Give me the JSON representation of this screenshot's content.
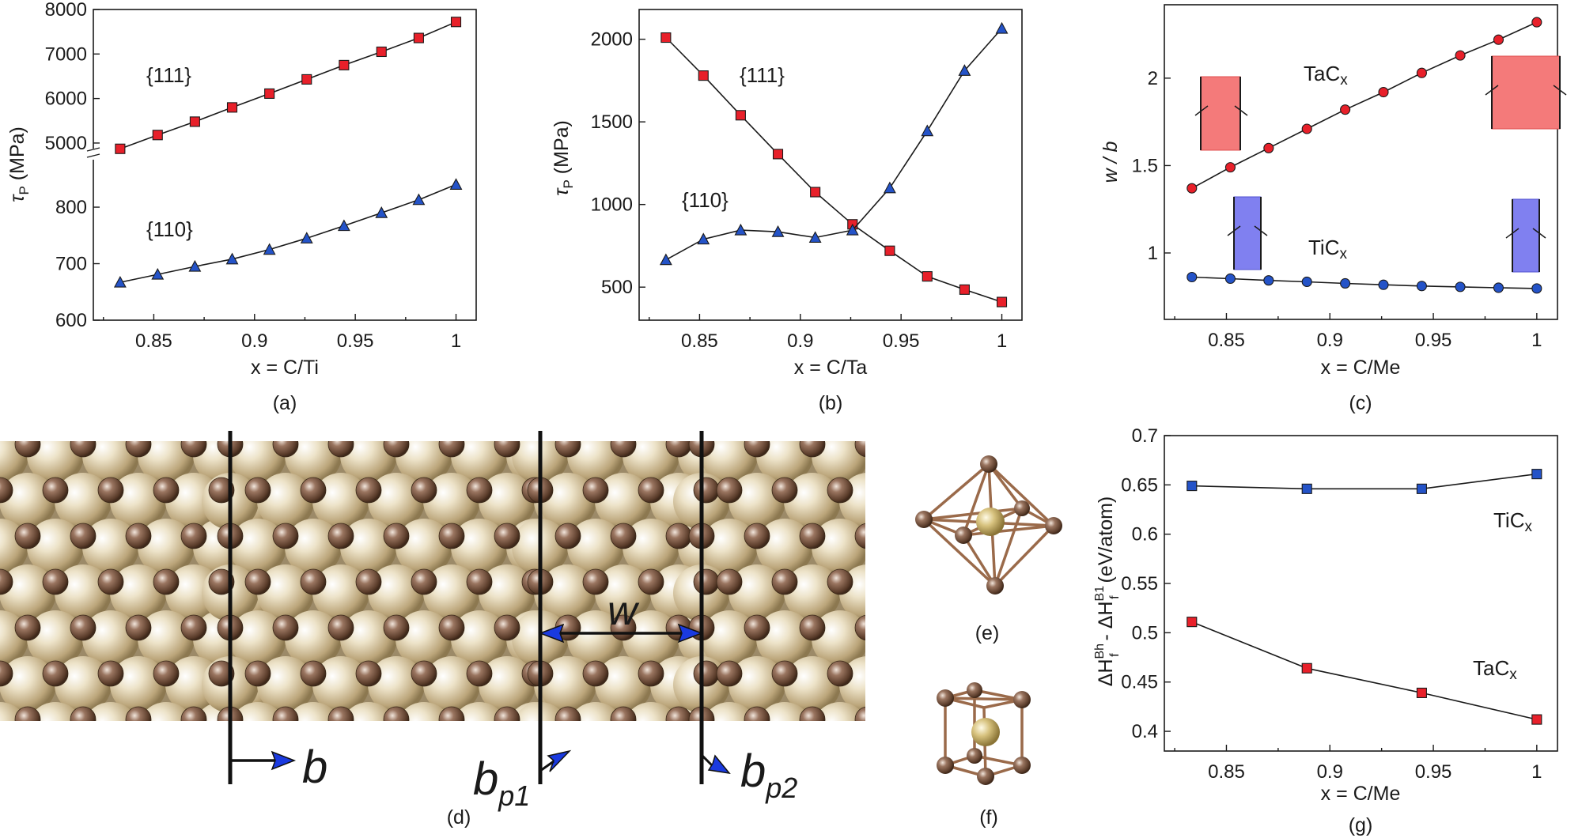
{
  "chart_data": [
    {
      "type": "line",
      "panel_label": "(a)",
      "xlabel": "x = C/Ti",
      "ylabel": "τP (MPa)",
      "x_ticks": [
        0.85,
        0.9,
        0.95,
        1
      ],
      "x_tick_labels": [
        "0.85",
        "0.9",
        "0.95",
        "1"
      ],
      "xlim": [
        0.82,
        1.01
      ],
      "broken_axis": true,
      "upper_ylim": [
        4750,
        8000
      ],
      "upper_y_tick_labels": [
        "5000",
        "6000",
        "7000",
        "8000"
      ],
      "upper_y_ticks": [
        5000,
        6000,
        7000,
        8000
      ],
      "lower_ylim": [
        600,
        870
      ],
      "lower_y_tick_labels": [
        "600",
        "700",
        "800"
      ],
      "lower_y_ticks": [
        600,
        700,
        800
      ],
      "x": [
        0.8333,
        0.8519,
        0.8704,
        0.8889,
        0.9074,
        0.9259,
        0.9444,
        0.963,
        0.9815,
        1.0
      ],
      "series": [
        {
          "name": "{111}",
          "marker": "square",
          "color": "#e8202a",
          "segment": "upper",
          "values": [
            4870,
            5180,
            5480,
            5800,
            6110,
            6430,
            6750,
            7050,
            7360,
            7720
          ]
        },
        {
          "name": "{110}",
          "marker": "triangle",
          "color": "#2453c8",
          "segment": "lower",
          "values": [
            667,
            681,
            695,
            708,
            725,
            745,
            767,
            790,
            813,
            840
          ]
        }
      ]
    },
    {
      "type": "line",
      "panel_label": "(b)",
      "xlabel": "x = C/Ta",
      "ylabel": "τP (MPa)",
      "x_ticks": [
        0.85,
        0.9,
        0.95,
        1
      ],
      "x_tick_labels": [
        "0.85",
        "0.9",
        "0.95",
        "1"
      ],
      "xlim": [
        0.82,
        1.01
      ],
      "ylim": [
        300,
        2180
      ],
      "y_ticks": [
        500,
        1000,
        1500,
        2000
      ],
      "y_tick_labels": [
        "500",
        "1000",
        "1500",
        "2000"
      ],
      "x": [
        0.8333,
        0.8519,
        0.8704,
        0.8889,
        0.9074,
        0.9259,
        0.9444,
        0.963,
        0.9815,
        1.0
      ],
      "series": [
        {
          "name": "{111}",
          "marker": "square",
          "color": "#e8202a",
          "values": [
            2010,
            1780,
            1540,
            1305,
            1075,
            880,
            720,
            565,
            485,
            410
          ]
        },
        {
          "name": "{110}",
          "marker": "triangle",
          "color": "#2453c8",
          "values": [
            665,
            790,
            845,
            835,
            800,
            845,
            1100,
            1445,
            1810,
            2065
          ]
        }
      ]
    },
    {
      "type": "line",
      "panel_label": "(c)",
      "xlabel": "x = C/Me",
      "ylabel": "w / b",
      "x_ticks": [
        0.85,
        0.9,
        0.95,
        1
      ],
      "x_tick_labels": [
        "0.85",
        "0.9",
        "0.95",
        "1"
      ],
      "xlim": [
        0.82,
        1.01
      ],
      "ylim": [
        0.62,
        2.42
      ],
      "y_ticks": [
        1,
        1.5,
        2
      ],
      "y_tick_labels": [
        "1",
        "1.5",
        "2"
      ],
      "x": [
        0.8333,
        0.8519,
        0.8704,
        0.8889,
        0.9074,
        0.9259,
        0.9444,
        0.963,
        0.9815,
        1.0
      ],
      "series": [
        {
          "name": "TaC",
          "subscript": "x",
          "marker": "circle",
          "color": "#e8202a",
          "values": [
            1.37,
            1.49,
            1.6,
            1.71,
            1.82,
            1.92,
            2.03,
            2.13,
            2.22,
            2.32
          ]
        },
        {
          "name": "TiC",
          "subscript": "x",
          "marker": "circle",
          "color": "#2453c8",
          "values": [
            0.862,
            0.853,
            0.843,
            0.835,
            0.826,
            0.818,
            0.811,
            0.806,
            0.801,
            0.797
          ]
        }
      ]
    },
    {
      "type": "line",
      "panel_label": "(g)",
      "xlabel": "x = C/Me",
      "ylabel": "ΔHfBh - ΔHfB1 (eV/atom)",
      "x_ticks": [
        0.85,
        0.9,
        0.95,
        1
      ],
      "x_tick_labels": [
        "0.85",
        "0.9",
        "0.95",
        "1"
      ],
      "xlim": [
        0.82,
        1.01
      ],
      "ylim": [
        0.38,
        0.7
      ],
      "y_ticks": [
        0.4,
        0.45,
        0.5,
        0.55,
        0.6,
        0.65,
        0.7
      ],
      "y_tick_labels": [
        "0.4",
        "0.45",
        "0.5",
        "0.55",
        "0.6",
        "0.65",
        "0.7"
      ],
      "x": [
        0.8333,
        0.8889,
        0.9444,
        1.0
      ],
      "series": [
        {
          "name": "TiC",
          "subscript": "x",
          "marker": "square",
          "color": "#2453c8",
          "values": [
            0.649,
            0.646,
            0.646,
            0.661
          ]
        },
        {
          "name": "TaC",
          "subscript": "x",
          "marker": "square",
          "color": "#e8202a",
          "values": [
            0.511,
            0.464,
            0.439,
            0.412
          ]
        }
      ]
    }
  ],
  "structure_panels": {
    "d": {
      "label": "(d)",
      "w_label": "w",
      "b_label": "b",
      "bp1_label": "b",
      "bp1_sub": "p1",
      "bp2_label": "b",
      "bp2_sub": "p2"
    },
    "e": {
      "label": "(e)"
    },
    "f": {
      "label": "(f)"
    }
  },
  "colors": {
    "red": "#e8202a",
    "blue": "#2453c8",
    "metal": "#c8b48c",
    "carbon": "#7a5a44",
    "bond": "#9a6a4a",
    "arrow": "#1a3ae0"
  }
}
